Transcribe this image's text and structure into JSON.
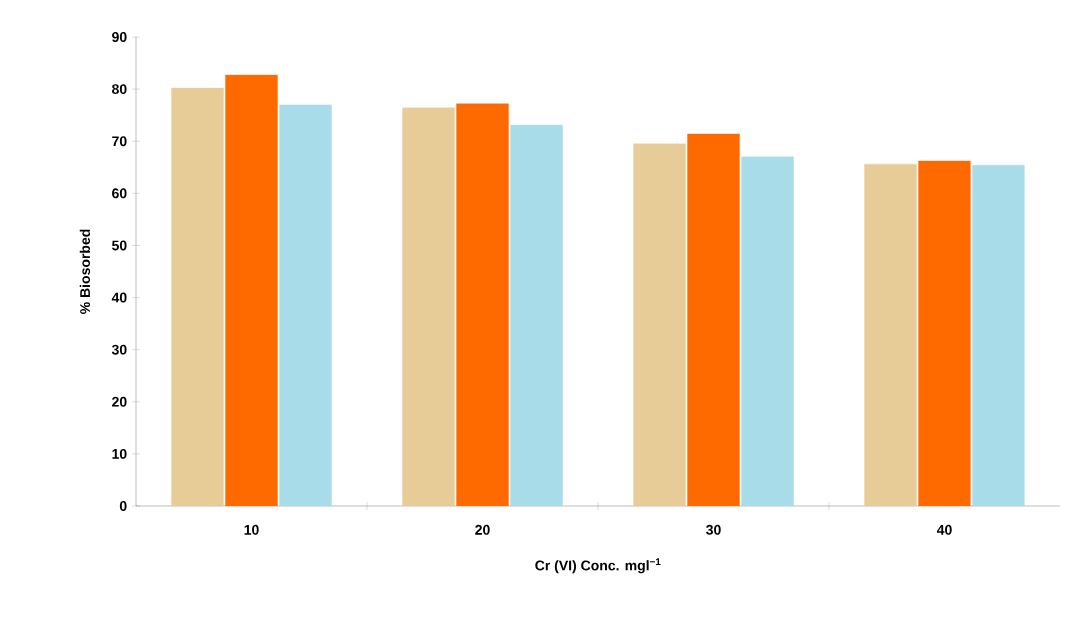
{
  "chart_data": {
    "type": "bar",
    "xlabel": "Cr (VI) Conc. mgl$^{−1}$",
    "ylabel": "% Biosorbed",
    "categories": [
      "10",
      "20",
      "30",
      "40"
    ],
    "series": [
      {
        "color": "#e8cc98",
        "values": [
          80.2,
          76.4,
          69.5,
          65.6
        ]
      },
      {
        "color": "#ff6a00",
        "values": [
          82.7,
          77.2,
          71.4,
          66.2
        ]
      },
      {
        "color": "#a8dce8",
        "values": [
          77.0,
          73.1,
          67.0,
          65.4
        ]
      }
    ],
    "ylim": [
      0,
      90
    ],
    "yticks": [
      0,
      10,
      20,
      30,
      40,
      50,
      60,
      70,
      80,
      90
    ],
    "grid": false
  }
}
